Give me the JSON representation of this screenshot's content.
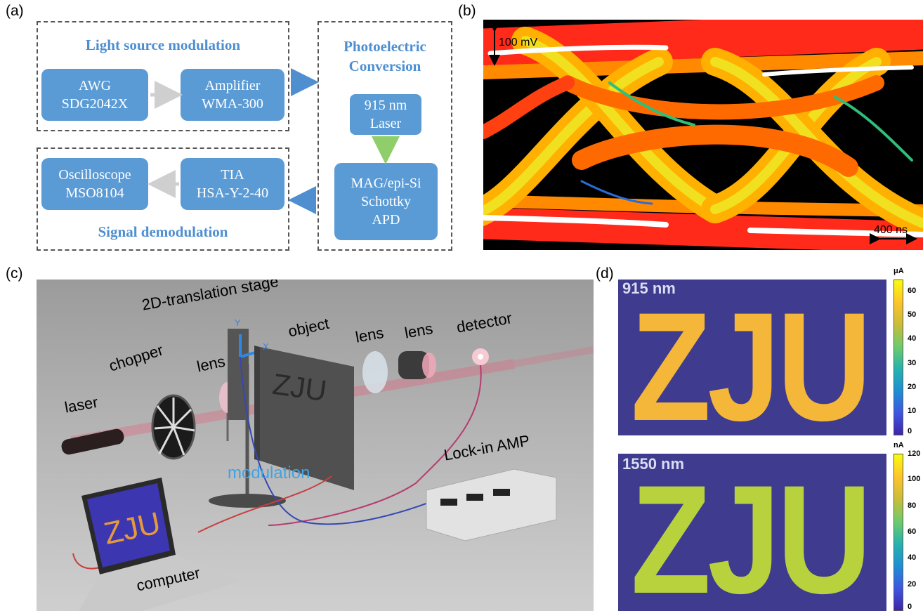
{
  "panels": {
    "a": "(a)",
    "b": "(b)",
    "c": "(c)",
    "d": "(d)"
  },
  "panel_a": {
    "group_source": "Light source modulation",
    "group_demod": "Signal demodulation",
    "group_photo": [
      "Photoelectric",
      "Conversion"
    ],
    "awg": [
      "AWG",
      "SDG2042X"
    ],
    "amplifier": [
      "Amplifier",
      "WMA-300"
    ],
    "laser": [
      "915 nm",
      "Laser"
    ],
    "apd": [
      "MAG/epi-Si",
      "Schottky",
      "APD"
    ],
    "tia": [
      "TIA",
      "HSA-Y-2-40"
    ],
    "oscilloscope": [
      "Oscilloscope",
      "MSO8104"
    ]
  },
  "panel_b": {
    "voltage_scale": "100 mV",
    "time_scale": "400 ns"
  },
  "panel_c": {
    "stage": "2D-translation stage",
    "chopper": "chopper",
    "laser": "laser",
    "lens1": "lens",
    "lens2": "lens",
    "lens3": "lens",
    "object": "object",
    "detector": "detector",
    "modulation": "modulation",
    "lockin": "Lock-in AMP",
    "computer": "computer",
    "object_letters": "ZJU",
    "screen_letters": "ZJU",
    "axis_x": "X",
    "axis_y": "Y"
  },
  "panel_d": {
    "top": {
      "wavelength": "915 nm",
      "letters": "ZJU",
      "unit": "μA",
      "ticks": [
        "60",
        "50",
        "40",
        "30",
        "20",
        "10",
        "0"
      ],
      "range": [
        0,
        65
      ]
    },
    "bottom": {
      "wavelength": "1550 nm",
      "letters": "ZJU",
      "unit": "nA",
      "ticks": [
        "120",
        "100",
        "80",
        "60",
        "40",
        "20",
        "0"
      ],
      "range": [
        0,
        120
      ]
    }
  },
  "colors": {
    "block": "#5b9bd5",
    "title": "#4e8fd1",
    "arrow": "#4f8fd0",
    "background_map": "#3f3b8f",
    "letters_915": "#f4b73a",
    "letters_1550": "#b8d23e"
  }
}
